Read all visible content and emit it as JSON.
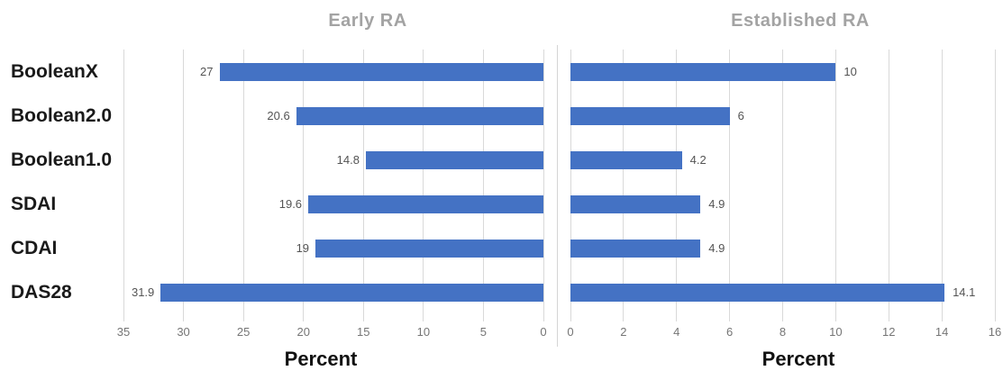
{
  "chart_data": {
    "type": "bar",
    "orientation": "horizontal",
    "grid": true,
    "legend": false,
    "categories": [
      "BooleanX",
      "Boolean2.0",
      "Boolean1.0",
      "SDAI",
      "CDAI",
      "DAS28"
    ],
    "panels": [
      {
        "title": "Early RA",
        "xlabel": "Percent",
        "series_name": "Early RA",
        "values": [
          27,
          20.6,
          14.8,
          19.6,
          19,
          31.9
        ],
        "value_labels": [
          "27",
          "20.6",
          "14.8",
          "19.6",
          "19",
          "31.9"
        ],
        "axis_ticks": [
          35,
          30,
          25,
          20,
          15,
          10,
          5,
          0
        ],
        "xlim": [
          0,
          35
        ],
        "direction": "right-to-left"
      },
      {
        "title": "Established RA",
        "xlabel": "Percent",
        "series_name": "Established RA",
        "values": [
          10,
          6,
          4.2,
          4.9,
          4.9,
          14.1
        ],
        "value_labels": [
          "10",
          "6",
          "4.2",
          "4.9",
          "4.9",
          "14.1"
        ],
        "axis_ticks": [
          0,
          2,
          4,
          6,
          8,
          10,
          12,
          14,
          16
        ],
        "xlim": [
          0,
          16
        ],
        "direction": "left-to-right"
      }
    ],
    "colors": {
      "bar": "#4472C4",
      "gridline": "#D9D9D9",
      "divider": "#D5D5D5",
      "panel_title": "#A3A3A3",
      "tick_label": "#757575",
      "value_label": "#545454",
      "category_label": "#1A1A1A",
      "axis_title": "#111111",
      "background": "#FFFFFF"
    }
  }
}
